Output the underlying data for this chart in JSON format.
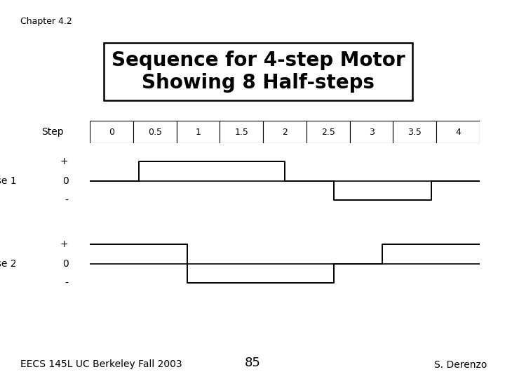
{
  "title_line1": "Sequence for 4-step Motor",
  "title_line2": "Showing 8 Half-steps",
  "chapter": "Chapter 4.2",
  "footer_left": "EECS 145L UC Berkeley Fall 2003",
  "footer_center": "85",
  "footer_right": "S. Derenzo",
  "step_labels": [
    "0",
    "0.5",
    "1",
    "1.5",
    "2",
    "2.5",
    "3",
    "3.5",
    "4"
  ],
  "phase1_x": [
    0,
    0.5,
    0.5,
    2.0,
    2.0,
    2.5,
    2.5,
    3.5,
    3.5,
    4.0
  ],
  "phase1_y": [
    0,
    0,
    1,
    1,
    0,
    0,
    -1,
    -1,
    0,
    0
  ],
  "phase2_x": [
    0,
    0,
    1.0,
    1.0,
    2.5,
    2.5,
    3.0,
    3.0,
    4.0
  ],
  "phase2_y": [
    1,
    1,
    1,
    -1,
    -1,
    0,
    0,
    1,
    1
  ],
  "bg_color": "#ffffff",
  "title_fontsize": 20,
  "chapter_fontsize": 9,
  "footer_fontsize": 10,
  "label_fontsize": 10,
  "step_label_fontsize": 9
}
